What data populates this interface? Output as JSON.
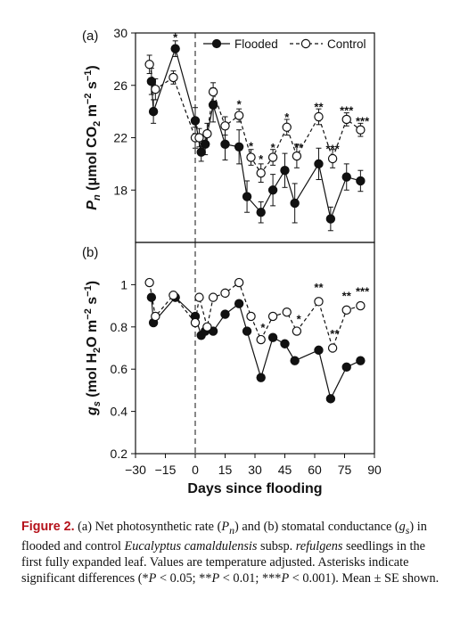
{
  "chart_data": [
    {
      "type": "line",
      "panel_label": "(a)",
      "ylabel_parts": [
        "P",
        "n",
        " (μmol CO",
        "2",
        " m",
        "−2",
        " s",
        "−1",
        ")"
      ],
      "xlabel": "",
      "xlim": [
        -30,
        90
      ],
      "ylim": [
        14,
        30
      ],
      "yticks": [
        18,
        22,
        26,
        30
      ],
      "grid": false,
      "legend": "top-right",
      "series": [
        {
          "name": "Flooded",
          "marker": "filled-circle",
          "line": "solid",
          "x": [
            -22,
            -21,
            -10,
            0,
            3,
            5,
            9,
            15,
            22,
            26,
            33,
            39,
            45,
            50,
            62,
            68,
            76,
            83
          ],
          "y": [
            26.3,
            24.0,
            28.8,
            23.3,
            20.9,
            21.5,
            24.5,
            21.5,
            21.3,
            17.5,
            16.3,
            18.0,
            19.5,
            17.0,
            20.0,
            15.8,
            19.0,
            18.7
          ],
          "err": [
            1.0,
            0.9,
            0.6,
            1.0,
            0.7,
            0.8,
            1.3,
            1.2,
            1.3,
            1.2,
            0.8,
            1.2,
            1.3,
            1.5,
            1.2,
            0.9,
            1.0,
            0.8
          ]
        },
        {
          "name": "Control",
          "marker": "open-circle",
          "line": "dashed",
          "x": [
            -23,
            -20,
            -11,
            0,
            2,
            6,
            9,
            15,
            22,
            28,
            33,
            39,
            46,
            51,
            62,
            69,
            76,
            83
          ],
          "y": [
            27.6,
            25.7,
            26.6,
            22.0,
            22.0,
            22.3,
            25.5,
            22.9,
            23.7,
            20.5,
            19.3,
            20.5,
            22.8,
            20.6,
            23.6,
            20.4,
            23.4,
            22.6
          ],
          "err": [
            0.7,
            0.8,
            0.5,
            0.8,
            0.7,
            0.8,
            0.7,
            0.7,
            0.5,
            0.6,
            0.7,
            0.6,
            0.6,
            0.9,
            0.6,
            0.7,
            0.5,
            0.5
          ]
        }
      ],
      "annotations": [
        {
          "x": -10,
          "y": 29.7,
          "text": "*"
        },
        {
          "x": 22,
          "y": 24.6,
          "text": "*"
        },
        {
          "x": 28,
          "y": 21.4,
          "text": "*"
        },
        {
          "x": 33,
          "y": 20.4,
          "text": "*"
        },
        {
          "x": 39,
          "y": 21.3,
          "text": "*"
        },
        {
          "x": 46,
          "y": 23.6,
          "text": "*"
        },
        {
          "x": 52,
          "y": 21.3,
          "text": "**"
        },
        {
          "x": 62,
          "y": 24.4,
          "text": "**"
        },
        {
          "x": 69,
          "y": 21.2,
          "text": "***"
        },
        {
          "x": 76,
          "y": 24.1,
          "text": "***"
        },
        {
          "x": 84,
          "y": 23.3,
          "text": "***"
        }
      ],
      "vline_x": 0
    },
    {
      "type": "line",
      "panel_label": "(b)",
      "ylabel_parts": [
        "g",
        "s",
        " (mol H",
        "2",
        "O m",
        "−2",
        " s",
        "−1",
        ")"
      ],
      "xlabel": "Days since flooding",
      "xlim": [
        -30,
        90
      ],
      "ylim": [
        0.2,
        1.2
      ],
      "yticks": [
        0.2,
        0.4,
        0.6,
        0.8,
        1
      ],
      "ytick_labels": [
        "0.2",
        "0.4",
        "0.6",
        "0.8",
        "1"
      ],
      "xticks": [
        -30,
        -15,
        0,
        15,
        30,
        45,
        60,
        75,
        90
      ],
      "xtick_labels": [
        "−30",
        "−15",
        "0",
        "15",
        "30",
        "45",
        "60",
        "75",
        "90"
      ],
      "grid": false,
      "series": [
        {
          "name": "Flooded",
          "marker": "filled-circle",
          "line": "solid",
          "x": [
            -22,
            -21,
            -10,
            0,
            3,
            5,
            9,
            15,
            22,
            26,
            33,
            39,
            45,
            50,
            62,
            68,
            76,
            83
          ],
          "y": [
            0.94,
            0.82,
            0.94,
            0.85,
            0.76,
            0.78,
            0.78,
            0.86,
            0.91,
            0.78,
            0.56,
            0.75,
            0.72,
            0.64,
            0.69,
            0.46,
            0.61,
            0.64
          ]
        },
        {
          "name": "Control",
          "marker": "open-circle",
          "line": "dashed",
          "x": [
            -23,
            -20,
            -11,
            0,
            2,
            6,
            9,
            15,
            22,
            28,
            33,
            39,
            46,
            51,
            62,
            69,
            76,
            83
          ],
          "y": [
            1.01,
            0.85,
            0.95,
            0.82,
            0.94,
            0.8,
            0.94,
            0.96,
            1.01,
            0.85,
            0.74,
            0.85,
            0.87,
            0.78,
            0.92,
            0.7,
            0.88,
            0.9
          ]
        }
      ],
      "annotations": [
        {
          "x": 34,
          "y": 0.8,
          "text": "*"
        },
        {
          "x": 52,
          "y": 0.84,
          "text": "*"
        },
        {
          "x": 62,
          "y": 0.99,
          "text": "**"
        },
        {
          "x": 70,
          "y": 0.77,
          "text": "**"
        },
        {
          "x": 76,
          "y": 0.95,
          "text": "**"
        },
        {
          "x": 84,
          "y": 0.97,
          "text": "***"
        }
      ],
      "vline_x": 0
    }
  ],
  "caption": {
    "label": "Figure 2.",
    "t1": " (a) Net photosynthetic rate (",
    "pn_main": "P",
    "pn_sub": "n",
    "t2": ") and (b) stomatal conductance (",
    "gs_main": "g",
    "gs_sub": "s",
    "t3": ") in flooded and control ",
    "species": "Eucalyptus camaldulensis",
    "t4": " subsp. ",
    "subsp": "refulgens",
    "t5": " seedlings in the first fully expanded leaf. Values are temperature adjusted. Asterisks indicate significant differences (*",
    "p1": "P",
    "t6": " < 0.05; **",
    "p2": "P",
    "t7": " < 0.01; ***",
    "p3": "P",
    "t8": " < 0.001). Mean ± SE shown."
  }
}
